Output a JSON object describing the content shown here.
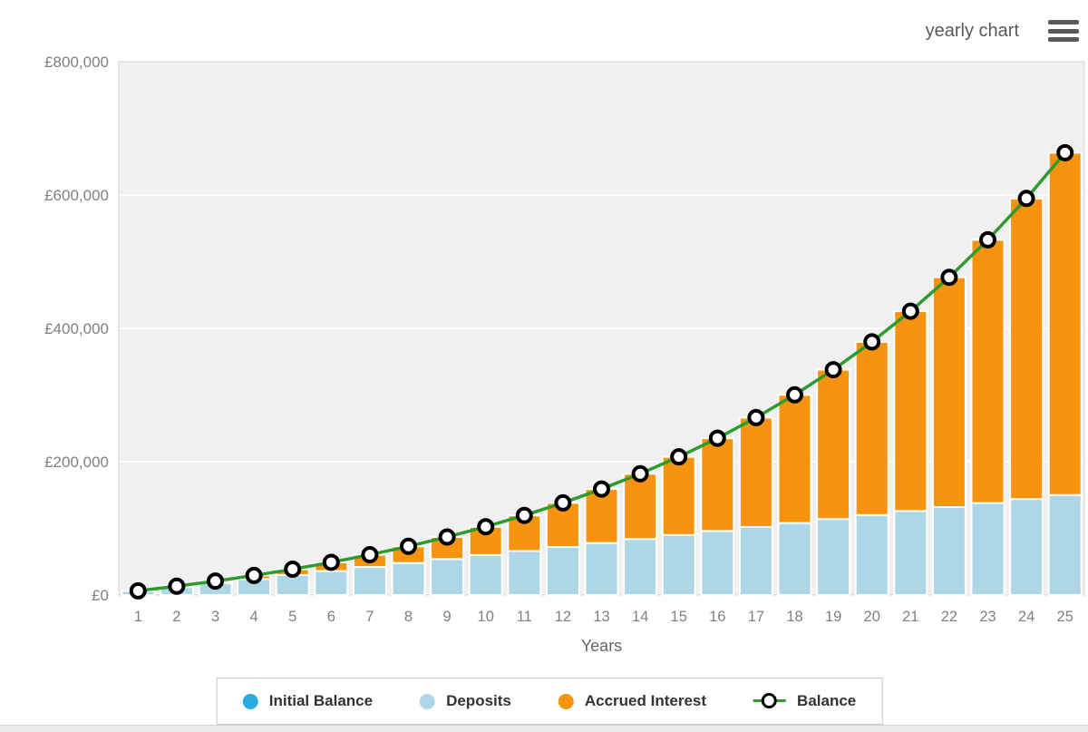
{
  "header": {
    "view_label": "yearly chart"
  },
  "chart_data": {
    "type": "bar",
    "stacked": true,
    "title": "",
    "xlabel": "Years",
    "ylabel": "",
    "x": [
      1,
      2,
      3,
      4,
      5,
      6,
      7,
      8,
      9,
      10,
      11,
      12,
      13,
      14,
      15,
      16,
      17,
      18,
      19,
      20,
      21,
      22,
      23,
      24,
      25
    ],
    "ylim": [
      0,
      800000
    ],
    "ytick_values": [
      0,
      200000,
      400000,
      600000,
      800000
    ],
    "ytick_labels": [
      "£0",
      "£200,000",
      "£400,000",
      "£600,000",
      "£800,000"
    ],
    "grid": true,
    "legend_position": "bottom",
    "series": [
      {
        "name": "Initial Balance",
        "type": "bar",
        "color": "#29abe2",
        "values": [
          0,
          0,
          0,
          0,
          0,
          0,
          0,
          0,
          0,
          0,
          0,
          0,
          0,
          0,
          0,
          0,
          0,
          0,
          0,
          0,
          0,
          0,
          0,
          0,
          0
        ]
      },
      {
        "name": "Deposits",
        "type": "bar",
        "color": "#add6e6",
        "values": [
          6000,
          12000,
          18000,
          24000,
          30000,
          36000,
          42000,
          48000,
          54000,
          60000,
          66000,
          72000,
          78000,
          84000,
          90000,
          96000,
          102000,
          108000,
          114000,
          120000,
          126000,
          132000,
          138000,
          144000,
          150000
        ]
      },
      {
        "name": "Accrued Interest",
        "type": "bar",
        "color": "#f7930e",
        "values": [
          283,
          1223,
          2891,
          5361,
          8719,
          13056,
          18476,
          25092,
          33029,
          42422,
          53430,
          66219,
          80975,
          97905,
          117235,
          139218,
          164131,
          192282,
          224008,
          259684,
          299725,
          344587,
          394775,
          450846,
          513417
        ]
      },
      {
        "name": "Balance",
        "type": "line",
        "color": "#2e9b2e",
        "marker": "circle-white-black-ring",
        "values": [
          6283,
          13223,
          20891,
          29361,
          38719,
          49056,
          60476,
          73092,
          87029,
          102422,
          119430,
          138219,
          158975,
          181905,
          207235,
          235218,
          266131,
          300282,
          338008,
          379684,
          425725,
          476587,
          532775,
          594846,
          663417
        ]
      }
    ],
    "style": {
      "plot_bg": "#f0f0f0",
      "plot_border": "#d4d4d4",
      "grid_color": "#ffffff",
      "bar_border": "#ffffff",
      "axis_text": "#808080",
      "xlabel_text": "#666666"
    }
  },
  "legend": {
    "items": [
      {
        "label": "Initial Balance",
        "color": "#29abe2"
      },
      {
        "label": "Deposits",
        "color": "#add6e6"
      },
      {
        "label": "Accrued Interest",
        "color": "#f7930e"
      },
      {
        "label": "Balance",
        "color": "#2e9b2e"
      }
    ]
  }
}
